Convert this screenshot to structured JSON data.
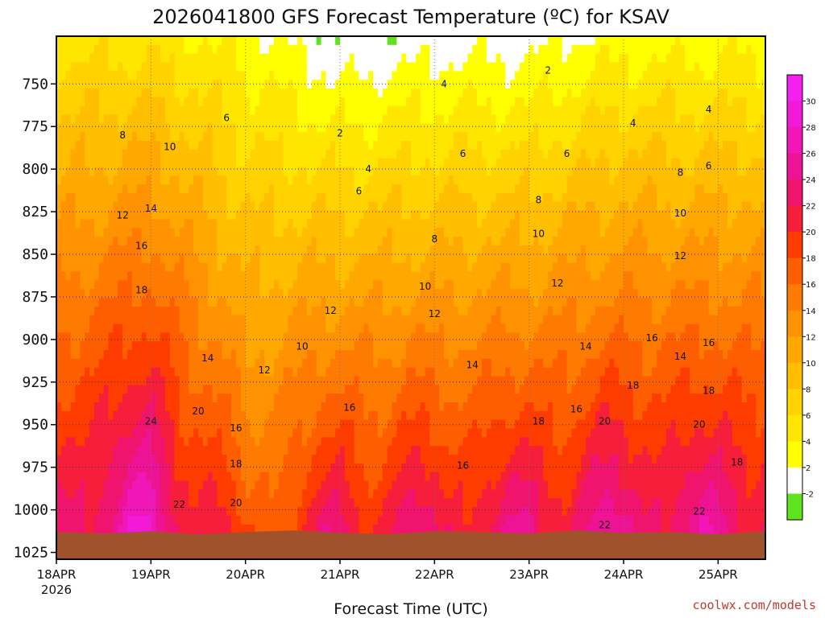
{
  "chart_data": {
    "type": "heatmap",
    "title": "2026041800 GFS Forecast Temperature (ºC) for KSAV",
    "xlabel": "Forecast Time (UTC)",
    "ylabel": "",
    "x_ticks": [
      "18APR",
      "19APR",
      "20APR",
      "21APR",
      "22APR",
      "23APR",
      "24APR",
      "25APR"
    ],
    "x_tick_sublabel": "2026",
    "x_range_days": [
      0,
      7.5
    ],
    "y_ticks": [
      750,
      775,
      800,
      825,
      850,
      875,
      900,
      925,
      950,
      975,
      1000,
      1025
    ],
    "y_range_hpa": [
      722,
      1029
    ],
    "surface_pressure_hpa": 1013,
    "surface_color": "#a0522d",
    "contour_interval_c": 2,
    "colorbar": {
      "ticks": [
        -2,
        2,
        4,
        6,
        8,
        10,
        12,
        14,
        16,
        18,
        20,
        22,
        24,
        26,
        28,
        30
      ],
      "bins": [
        {
          "range": "<0",
          "color": "#5fe31f"
        },
        {
          "range": "0-2",
          "color": "#ffffff"
        },
        {
          "range": "2-4",
          "color": "#ffff00"
        },
        {
          "range": "4-6",
          "color": "#ffe600"
        },
        {
          "range": "6-8",
          "color": "#ffd200"
        },
        {
          "range": "8-10",
          "color": "#ffbe00"
        },
        {
          "range": "10-12",
          "color": "#ffa800"
        },
        {
          "range": "12-14",
          "color": "#ff9200"
        },
        {
          "range": "14-16",
          "color": "#ff7a00"
        },
        {
          "range": "16-18",
          "color": "#ff5e00"
        },
        {
          "range": "18-20",
          "color": "#ff3c00"
        },
        {
          "range": "20-22",
          "color": "#f71e3c"
        },
        {
          "range": "22-24",
          "color": "#f0146e"
        },
        {
          "range": "24-26",
          "color": "#ee1394"
        },
        {
          "range": "26-28",
          "color": "#f016b8"
        },
        {
          "range": "28-30",
          "color": "#f21ad8"
        },
        {
          "range": ">30",
          "color": "#f520f0"
        }
      ]
    },
    "temperature_profiles": [
      {
        "time": "18APR",
        "day": 0.0,
        "levels_hpa": [
          722,
          1013
        ],
        "temps_c": [
          5,
          23
        ]
      },
      {
        "time": "19APR",
        "day": 1.0,
        "levels_hpa": [
          722,
          1013
        ],
        "temps_c": [
          5,
          27
        ]
      },
      {
        "time": "20APR",
        "day": 2.0,
        "levels_hpa": [
          722,
          1013
        ],
        "temps_c": [
          3,
          17
        ]
      },
      {
        "time": "21APR",
        "day": 3.0,
        "levels_hpa": [
          722,
          1013
        ],
        "temps_c": [
          0,
          22
        ]
      },
      {
        "time": "22APR",
        "day": 4.0,
        "levels_hpa": [
          722,
          1013
        ],
        "temps_c": [
          1,
          22
        ]
      },
      {
        "time": "23APR",
        "day": 5.0,
        "levels_hpa": [
          722,
          1013
        ],
        "temps_c": [
          1,
          23
        ]
      },
      {
        "time": "24APR",
        "day": 6.0,
        "levels_hpa": [
          722,
          1013
        ],
        "temps_c": [
          3,
          24
        ]
      },
      {
        "time": "25APR",
        "day": 7.0,
        "levels_hpa": [
          722,
          1013
        ],
        "temps_c": [
          3,
          24
        ]
      }
    ],
    "contour_labels": [
      {
        "text": "2",
        "day": 3.0,
        "hpa": 779
      },
      {
        "text": "2",
        "day": 5.2,
        "hpa": 742
      },
      {
        "text": "4",
        "day": 4.1,
        "hpa": 750
      },
      {
        "text": "4",
        "day": 3.3,
        "hpa": 800
      },
      {
        "text": "4",
        "day": 6.1,
        "hpa": 773
      },
      {
        "text": "4",
        "day": 6.9,
        "hpa": 765
      },
      {
        "text": "6",
        "day": 1.8,
        "hpa": 770
      },
      {
        "text": "6",
        "day": 3.2,
        "hpa": 813
      },
      {
        "text": "6",
        "day": 4.3,
        "hpa": 791
      },
      {
        "text": "6",
        "day": 5.4,
        "hpa": 791
      },
      {
        "text": "6",
        "day": 6.9,
        "hpa": 798
      },
      {
        "text": "8",
        "day": 0.7,
        "hpa": 780
      },
      {
        "text": "8",
        "day": 4.0,
        "hpa": 841
      },
      {
        "text": "8",
        "day": 5.1,
        "hpa": 818
      },
      {
        "text": "8",
        "day": 6.6,
        "hpa": 802
      },
      {
        "text": "10",
        "day": 1.2,
        "hpa": 787
      },
      {
        "text": "10",
        "day": 2.6,
        "hpa": 904
      },
      {
        "text": "10",
        "day": 3.9,
        "hpa": 869
      },
      {
        "text": "10",
        "day": 5.1,
        "hpa": 838
      },
      {
        "text": "10",
        "day": 6.6,
        "hpa": 826
      },
      {
        "text": "12",
        "day": 0.7,
        "hpa": 827
      },
      {
        "text": "12",
        "day": 2.2,
        "hpa": 918
      },
      {
        "text": "12",
        "day": 2.9,
        "hpa": 883
      },
      {
        "text": "12",
        "day": 4.0,
        "hpa": 885
      },
      {
        "text": "12",
        "day": 5.3,
        "hpa": 867
      },
      {
        "text": "12",
        "day": 6.6,
        "hpa": 851
      },
      {
        "text": "14",
        "day": 1.0,
        "hpa": 823
      },
      {
        "text": "14",
        "day": 1.6,
        "hpa": 911
      },
      {
        "text": "14",
        "day": 4.4,
        "hpa": 915
      },
      {
        "text": "14",
        "day": 5.6,
        "hpa": 904
      },
      {
        "text": "14",
        "day": 6.6,
        "hpa": 910
      },
      {
        "text": "16",
        "day": 0.9,
        "hpa": 845
      },
      {
        "text": "16",
        "day": 1.9,
        "hpa": 952
      },
      {
        "text": "16",
        "day": 3.1,
        "hpa": 940
      },
      {
        "text": "16",
        "day": 4.3,
        "hpa": 974
      },
      {
        "text": "16",
        "day": 5.5,
        "hpa": 941
      },
      {
        "text": "16",
        "day": 6.3,
        "hpa": 899
      },
      {
        "text": "16",
        "day": 6.9,
        "hpa": 902
      },
      {
        "text": "18",
        "day": 0.9,
        "hpa": 871
      },
      {
        "text": "18",
        "day": 1.9,
        "hpa": 973
      },
      {
        "text": "18",
        "day": 5.1,
        "hpa": 948
      },
      {
        "text": "18",
        "day": 6.1,
        "hpa": 927
      },
      {
        "text": "18",
        "day": 6.9,
        "hpa": 930
      },
      {
        "text": "18",
        "day": 7.2,
        "hpa": 972
      },
      {
        "text": "20",
        "day": 1.5,
        "hpa": 942
      },
      {
        "text": "20",
        "day": 1.9,
        "hpa": 996
      },
      {
        "text": "20",
        "day": 5.8,
        "hpa": 948
      },
      {
        "text": "20",
        "day": 6.8,
        "hpa": 950
      },
      {
        "text": "22",
        "day": 1.3,
        "hpa": 997
      },
      {
        "text": "22",
        "day": 5.8,
        "hpa": 1009
      },
      {
        "text": "22",
        "day": 6.8,
        "hpa": 1001
      },
      {
        "text": "24",
        "day": 1.0,
        "hpa": 948
      }
    ]
  },
  "credit": "coolwx.com/models"
}
